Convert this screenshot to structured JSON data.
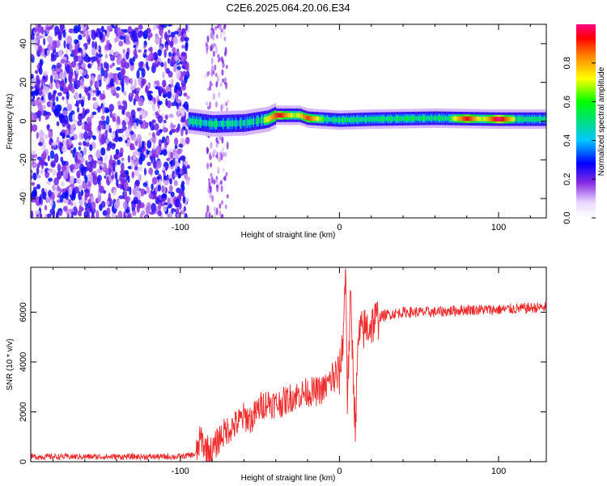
{
  "title": "C2E6.2025.064.20.06.E34",
  "chart_data": [
    {
      "type": "heatmap",
      "xlabel": "Height of straight line (km)",
      "ylabel": "Frequency (Hz)",
      "xlim": [
        -194,
        130
      ],
      "ylim": [
        -50,
        50
      ],
      "xticks": [
        -100,
        0,
        100
      ],
      "yticks": [
        -40,
        -20,
        0,
        20,
        40
      ],
      "colorbar": {
        "label": "Normalized spectral amplitude",
        "range": [
          0,
          1
        ],
        "ticks": [
          "0.0",
          "0.2",
          "0.4",
          "0.6",
          "0.8"
        ]
      },
      "ridge": [
        {
          "x": -94,
          "f": 0.0
        },
        {
          "x": -80,
          "f": -1.5
        },
        {
          "x": -60,
          "f": -1.0
        },
        {
          "x": -45,
          "f": 1.0
        },
        {
          "x": -40,
          "f": 3.0
        },
        {
          "x": -25,
          "f": 3.0
        },
        {
          "x": -20,
          "f": 1.5
        },
        {
          "x": 0,
          "f": 0.5
        },
        {
          "x": 20,
          "f": 1.0
        },
        {
          "x": 60,
          "f": 1.5
        },
        {
          "x": 100,
          "f": 1.0
        },
        {
          "x": 130,
          "f": 1.0
        }
      ],
      "peaks": [
        {
          "x": -38,
          "f": 3.0,
          "amplitude": 0.95
        },
        {
          "x": -20,
          "f": 1.0,
          "amplitude": 0.9
        },
        {
          "x": 80,
          "f": 1.0,
          "amplitude": 0.95
        },
        {
          "x": 100,
          "f": 1.0,
          "amplitude": 1.0
        }
      ],
      "noise_region": {
        "x": [
          -194,
          -95
        ],
        "amplitude": 0.25
      }
    },
    {
      "type": "line",
      "xlabel": "Height of straight line (km)",
      "ylabel": "SNR (10 * v/v)",
      "xlim": [
        -194,
        130
      ],
      "ylim": [
        0,
        7800
      ],
      "xticks": [
        -100,
        0,
        100
      ],
      "yticks": [
        0,
        2000,
        4000,
        6000
      ],
      "series": [
        {
          "color": "#ee2a2a",
          "x": [
            -194,
            -150,
            -100,
            -90,
            -87,
            -85,
            -80,
            -75,
            -70,
            -65,
            -60,
            -55,
            -50,
            -45,
            -40,
            -35,
            -30,
            -25,
            -20,
            -15,
            -10,
            -5,
            0,
            2,
            4,
            5,
            7,
            9,
            10,
            12,
            15,
            20,
            25,
            30,
            40,
            60,
            80,
            100,
            130
          ],
          "y": [
            200,
            200,
            200,
            300,
            1000,
            600,
            400,
            1000,
            1300,
            1500,
            1800,
            1700,
            2200,
            2400,
            2300,
            2400,
            2600,
            2700,
            2800,
            2800,
            2900,
            3300,
            3500,
            4700,
            7800,
            2500,
            6500,
            3000,
            1500,
            5000,
            5300,
            5500,
            5800,
            5900,
            6000,
            6000,
            6100,
            6100,
            6200
          ]
        }
      ]
    }
  ]
}
